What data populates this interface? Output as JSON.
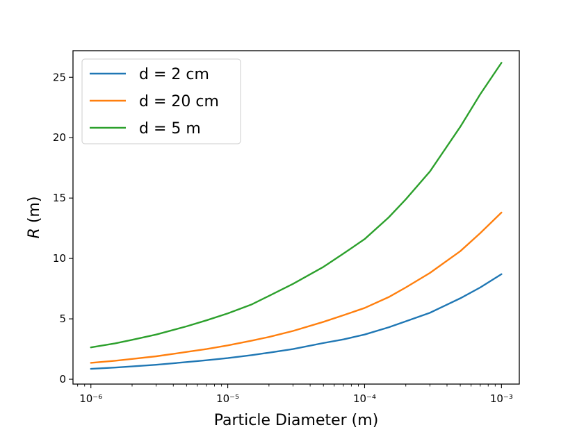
{
  "chart_data": {
    "type": "line",
    "xscale": "log",
    "x": [
      1e-06,
      1.5e-06,
      2e-06,
      3e-06,
      5e-06,
      7e-06,
      1e-05,
      1.5e-05,
      2e-05,
      3e-05,
      5e-05,
      7e-05,
      0.0001,
      0.00015,
      0.0002,
      0.0003,
      0.0005,
      0.0007,
      0.001
    ],
    "series": [
      {
        "name": "d = 2 cm",
        "color": "#1f77b4",
        "values": [
          0.86,
          0.97,
          1.06,
          1.2,
          1.42,
          1.57,
          1.75,
          2.0,
          2.2,
          2.5,
          3.0,
          3.3,
          3.7,
          4.3,
          4.8,
          5.5,
          6.7,
          7.6,
          8.7
        ]
      },
      {
        "name": "d = 20 cm",
        "color": "#ff7f0e",
        "values": [
          1.36,
          1.53,
          1.68,
          1.9,
          2.26,
          2.5,
          2.8,
          3.2,
          3.5,
          4.0,
          4.75,
          5.3,
          5.9,
          6.8,
          7.6,
          8.8,
          10.6,
          12.1,
          13.8
        ]
      },
      {
        "name": "d = 5 m",
        "color": "#2ca02c",
        "values": [
          2.64,
          2.97,
          3.26,
          3.7,
          4.38,
          4.88,
          5.45,
          6.2,
          6.9,
          7.9,
          9.3,
          10.4,
          11.6,
          13.4,
          14.9,
          17.2,
          20.9,
          23.6,
          26.2
        ]
      }
    ],
    "xticks": [
      "10⁻⁶",
      "10⁻⁵",
      "10⁻⁴",
      "10⁻³"
    ],
    "xtick_values": [
      1e-06,
      1e-05,
      0.0001,
      0.001
    ],
    "xlim": [
      7.4e-07,
      0.00135
    ],
    "yticks": [
      0,
      5,
      10,
      15,
      20,
      25
    ],
    "ylim": [
      -0.4,
      27.2
    ],
    "xlabel": "Particle Diameter (m)",
    "ylabel_var": "R",
    "ylabel_unit": " (m)",
    "legend_position": "top-left",
    "grid": false
  }
}
